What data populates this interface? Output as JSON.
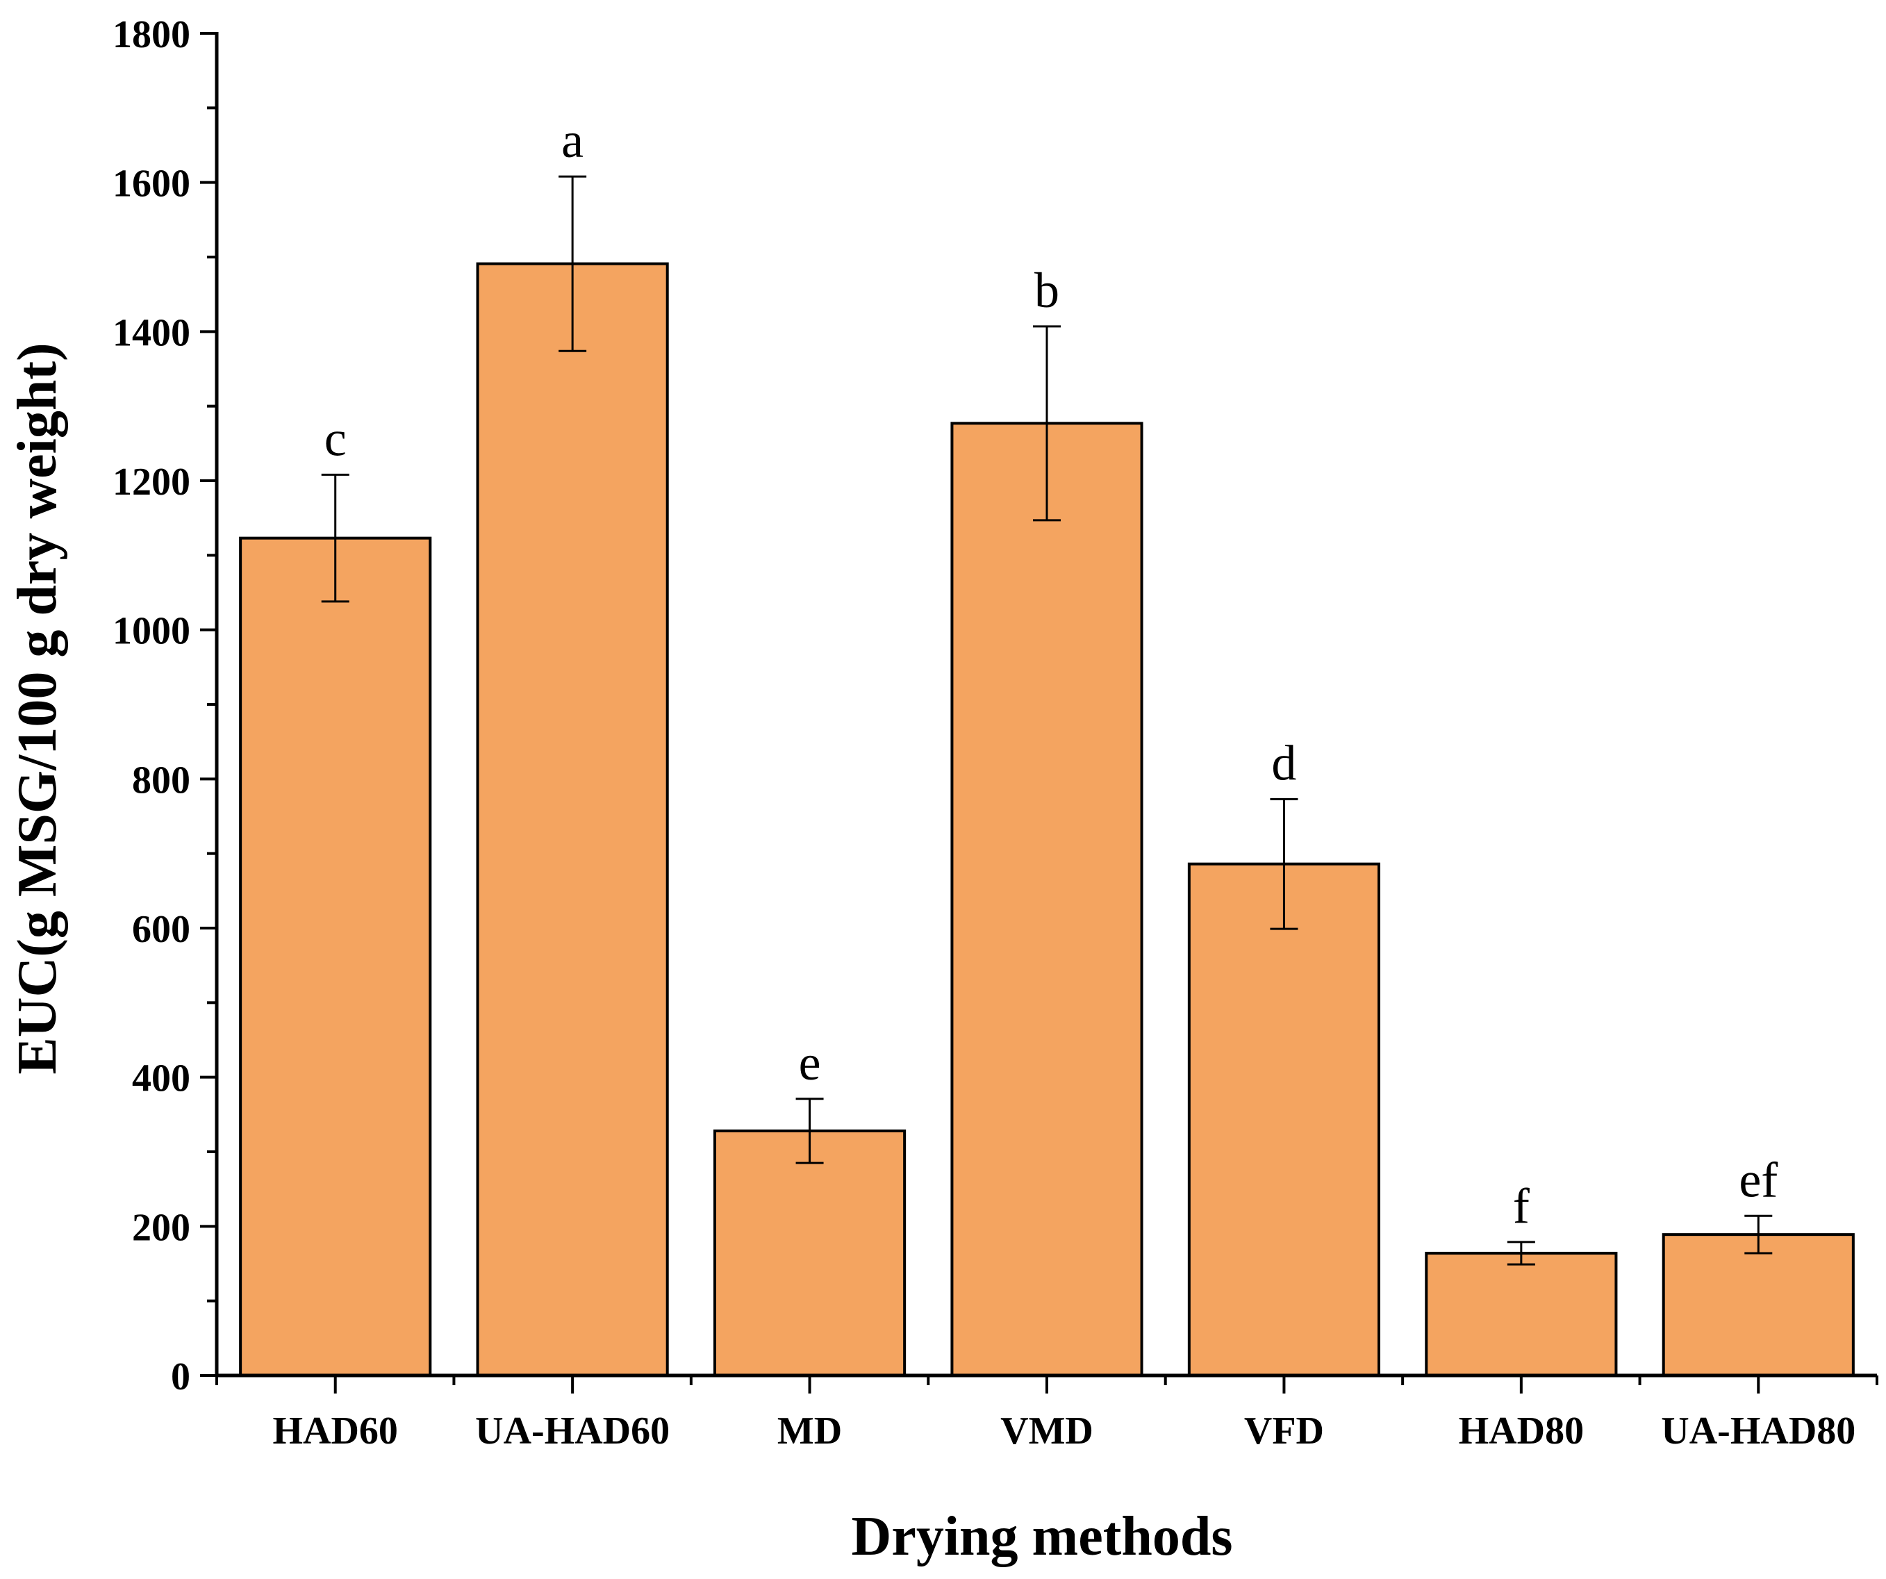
{
  "chart_data": {
    "type": "bar",
    "title": "",
    "xlabel": "Drying methods",
    "ylabel": "EUC(g MSG/100 g dry weight)",
    "ylim": [
      0,
      1800
    ],
    "yticks": [
      0,
      200,
      400,
      600,
      800,
      1000,
      1200,
      1400,
      1600,
      1800
    ],
    "grid": false,
    "legend": "none",
    "categories": [
      "HAD60",
      "UA-HAD60",
      "MD",
      "VMD",
      "VFD",
      "HAD80",
      "UA-HAD80"
    ],
    "values": [
      1123,
      1491,
      328,
      1277,
      686,
      164,
      189
    ],
    "errors": [
      85,
      117,
      43,
      130,
      87,
      15,
      25
    ],
    "significance": [
      "c",
      "a",
      "e",
      "b",
      "d",
      "f",
      "ef"
    ],
    "colors": {
      "bar": "#f4a460",
      "stroke": "#000000"
    }
  }
}
